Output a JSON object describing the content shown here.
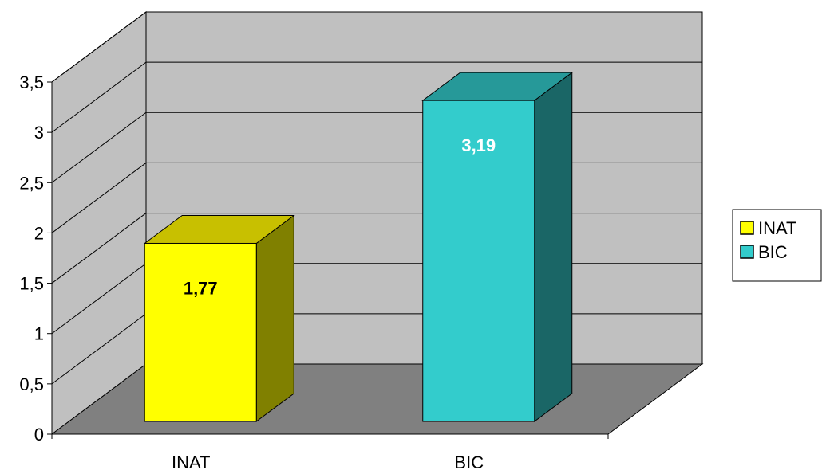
{
  "chart_data": {
    "type": "bar",
    "categories": [
      "INAT",
      "BIC"
    ],
    "values": [
      1.77,
      3.19
    ],
    "data_labels": [
      "1,77",
      "3,19"
    ],
    "ylim": [
      0,
      3.5
    ],
    "y_ticks": [
      0,
      0.5,
      1,
      1.5,
      2,
      2.5,
      3,
      3.5
    ],
    "y_tick_labels": [
      "0",
      "0,5",
      "1",
      "1,5",
      "2",
      "2,5",
      "3",
      "3,5"
    ],
    "grid": true,
    "three_d": true,
    "legend": {
      "position": "right",
      "entries": [
        "INAT",
        "BIC"
      ]
    },
    "colors": {
      "INAT": {
        "front": "#ffff00",
        "top": "#c8c000",
        "side": "#808000",
        "label": "#000000"
      },
      "BIC": {
        "front": "#33cccc",
        "top": "#269999",
        "side": "#1a6666",
        "label": "#ffffff"
      },
      "wall": "#c0c0c0",
      "floor": "#808080"
    }
  }
}
